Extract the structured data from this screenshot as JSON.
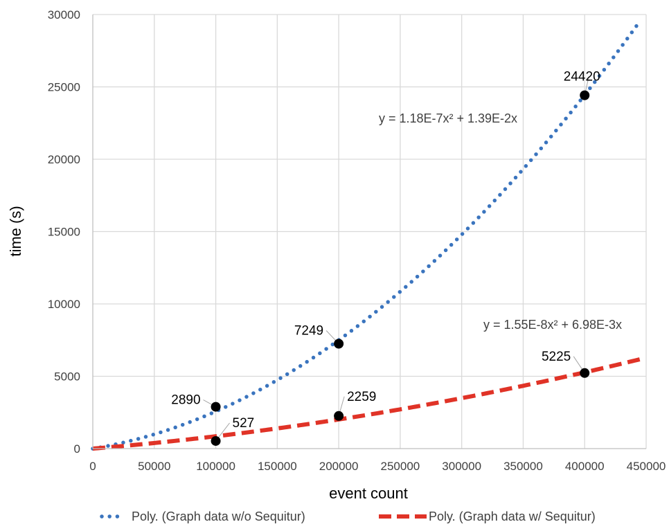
{
  "chart_data": {
    "type": "scatter",
    "xlabel": "event count",
    "ylabel": "time (s)",
    "xlim": [
      0,
      450000
    ],
    "ylim": [
      0,
      30000
    ],
    "x_ticks": [
      "0",
      "50000",
      "100000",
      "150000",
      "200000",
      "250000",
      "300000",
      "350000",
      "400000",
      "450000"
    ],
    "y_ticks": [
      "0",
      "5000",
      "10000",
      "15000",
      "20000",
      "25000",
      "30000"
    ],
    "grid": true,
    "legend_position": "bottom",
    "series": [
      {
        "name": "Graph data w/o Sequitur",
        "color": "#000000",
        "points": [
          {
            "x": 100000,
            "y": 2890,
            "label": "2890"
          },
          {
            "x": 200000,
            "y": 7249,
            "label": "7249"
          },
          {
            "x": 400000,
            "y": 24420,
            "label": "24420"
          }
        ]
      },
      {
        "name": "Graph data w/ Sequitur",
        "color": "#000000",
        "points": [
          {
            "x": 100000,
            "y": 527,
            "label": "527"
          },
          {
            "x": 200000,
            "y": 2259,
            "label": "2259"
          },
          {
            "x": 400000,
            "y": 5225,
            "label": "5225"
          }
        ]
      }
    ],
    "trendlines": [
      {
        "name": "Poly. (Graph data w/o Sequitur)",
        "type": "polynomial",
        "a2": 1.18e-07,
        "a1": 0.0139,
        "equation": "y = 1.18E-7x² + 1.39E-2x",
        "color": "#3a74be",
        "style": "dotted",
        "x_range": [
          0,
          445000
        ]
      },
      {
        "name": "Poly. (Graph data w/ Sequitur)",
        "type": "polynomial",
        "a2": 1.55e-08,
        "a1": 0.00698,
        "equation": "y = 1.55E-8x² + 6.98E-3x",
        "color": "#e03327",
        "style": "dashed",
        "x_range": [
          0,
          445000
        ]
      }
    ]
  }
}
